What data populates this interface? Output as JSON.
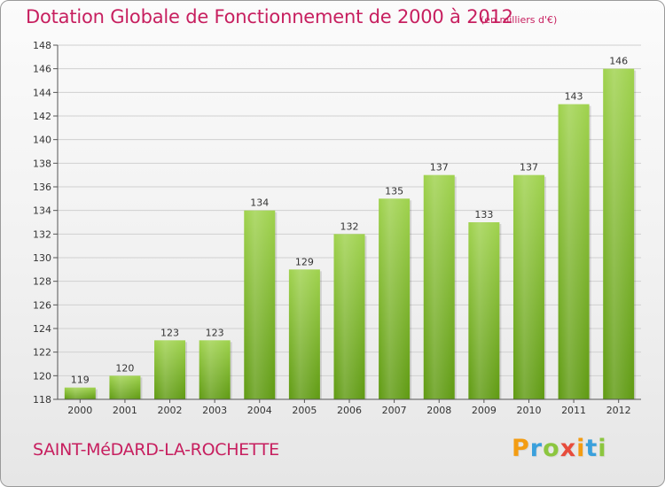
{
  "page": {
    "title": "Dotation Globale de Fonctionnement de 2000 à 2012",
    "subtitle": "(en milliers d'€)",
    "commune": "SAINT-MéDARD-LA-ROCHETTE",
    "logo": {
      "letters": [
        "P",
        "r",
        "o",
        "x",
        "i",
        "t",
        "i"
      ],
      "colors": [
        "#f39c12",
        "#3aa0dc",
        "#8cc63f",
        "#e74c3c",
        "#f39c12",
        "#3aa0dc",
        "#8cc63f"
      ]
    }
  },
  "chart_data": {
    "type": "bar",
    "title": "Dotation Globale de Fonctionnement de 2000 à 2012",
    "subtitle": "(en milliers d'€)",
    "categories": [
      "2000",
      "2001",
      "2002",
      "2003",
      "2004",
      "2005",
      "2006",
      "2007",
      "2008",
      "2009",
      "2010",
      "2011",
      "2012"
    ],
    "values": [
      119,
      120,
      123,
      123,
      134,
      129,
      132,
      135,
      137,
      133,
      137,
      143,
      146
    ],
    "ylim": [
      118,
      148
    ],
    "yticks": [
      118,
      120,
      122,
      124,
      126,
      128,
      130,
      132,
      134,
      136,
      138,
      140,
      142,
      144,
      146,
      148
    ],
    "grid": true,
    "bar_color": "#7dbb2e",
    "xlabel": "",
    "ylabel": ""
  }
}
